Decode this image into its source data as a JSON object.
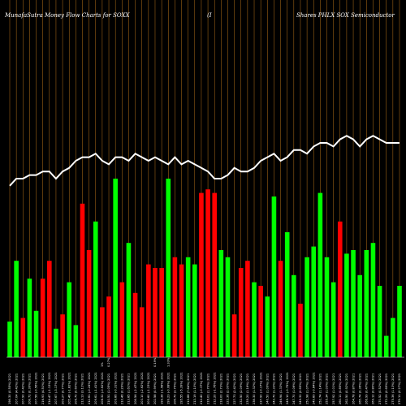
{
  "chart_data": {
    "type": "bar",
    "title_left": "MunafaSutra  Money Flow  Charts for SOXX",
    "title_mid": "(I",
    "title_right": "Shares PHLX  SOX  Semiconductor",
    "ylim": [
      0,
      100
    ],
    "colors": {
      "background": "#000000",
      "up": "#00ff00",
      "down": "#ff0000",
      "grid": "#b8731a",
      "line": "#ffffff",
      "baseline": "#ffffff"
    },
    "categories": [
      "198.30 (0.55%) 2021",
      "207.04 (4.42%) 2021",
      "207.90 (0.42%) 2021",
      "208.72 (0.39%) 2021",
      "207.56 (-0.56%) 2021",
      "216.93 (4.51%) 2021",
      "214.47 (-1.13%) 2021",
      "207.67 (-3.17%) 2021",
      "209.27 (0.77%) 2021",
      "205.46 (-1.82%) 2021",
      "206.70 (0.60%) 2021",
      "213.13 (3.11%) 2021",
      "212.61 (-0.24%) 2021",
      "209.61 (-1.41%) 2021",
      "208.32 (-0.62%) 2021",
      "210.51 (1.05%) 2021",
      "209.86 (-0.31%) 2021",
      "210.46 (0.29%) 2021",
      "213.85 (1.61%) 2021",
      "208.56 (-2.47%) 2021",
      "203.10 (-2.62%) 2021",
      "200.60 (-1.23%) 2021",
      "202.58 (0.99%) 2021",
      "199.38 (-1.58%) 2021",
      "199.23 (-0.08%) 2021",
      "206.70 (3.75%) 2021",
      "195.55 (-5.39%) 2021",
      "210.88 (7.84%) 2021",
      "213.19 (1.10%) 2021",
      "212.40 (-0.37%) 2021",
      "216.01 (1.70%) 2021",
      "212.20 (-1.76%) 2021",
      "218.00 (2.73%) 2021",
      "222.36 (2.00%) 2021",
      "227.73 (2.42%) 2021",
      "232.50 (2.09%) 2021",
      "235.20 (1.16%) 2021",
      "238.30 (1.32%) 2021",
      "237.90 (-0.17%) 2021",
      "240.50 (1.09%) 2021",
      "243.70 (1.33%) 2021",
      "246.94 (1.33%) 2021",
      "245.10 (-0.75%) 2021",
      "247.70 (1.06%) 2021",
      "249.32 (0.65%) 2021",
      "251.98 (1.07%) 2021",
      "249.89 (-0.84%) 2021",
      "252.74 (1.14%) 2021",
      "255.34 (1.03%) 2021",
      "257.92 (1.01%) 2021",
      "260.11 (0.85%) 2021",
      "262.50 (0.92%) 2021",
      "264.78 (0.87%) 2021",
      "265.74 (0.36%) 2021",
      "266.99 (0.47%) 2021",
      "269.12 (0.80%) 2021",
      "270.52 (0.52%) 2021",
      "272.29 (0.65%) 2021",
      "275.36 (1.13%) 2021",
      "276.11 (0.27%) 2021"
    ],
    "vol_labels": [
      "",
      "",
      "",
      "",
      "",
      "",
      "",
      "",
      "",
      "",
      "",
      "",
      "",
      "",
      "1%",
      "0.27%",
      "",
      "",
      "",
      "",
      "",
      "",
      "0.19%",
      "",
      "1.33%",
      "",
      "",
      "",
      "",
      "",
      "",
      "",
      "",
      "",
      "",
      "",
      "",
      "",
      "",
      "",
      "",
      "",
      "",
      "",
      "",
      "",
      "",
      "",
      "",
      "",
      "",
      "",
      "",
      "",
      "",
      "",
      "",
      "",
      "",
      ""
    ],
    "bar_colors": [
      "up",
      "up",
      "down",
      "up",
      "up",
      "down",
      "down",
      "up",
      "down",
      "up",
      "up",
      "down",
      "down",
      "up",
      "down",
      "down",
      "up",
      "down",
      "up",
      "down",
      "down",
      "down",
      "down",
      "down",
      "up",
      "down",
      "down",
      "up",
      "up",
      "down",
      "down",
      "down",
      "up",
      "up",
      "down",
      "down",
      "down",
      "up",
      "down",
      "up",
      "up",
      "down",
      "up",
      "up",
      "down",
      "up",
      "up",
      "up",
      "up",
      "up",
      "down",
      "up",
      "up",
      "up",
      "up",
      "up",
      "up",
      "up",
      "up",
      "up"
    ],
    "bar_values": [
      10,
      27,
      11,
      22,
      13,
      22,
      27,
      8,
      12,
      21,
      9,
      43,
      30,
      38,
      14,
      17,
      50,
      21,
      32,
      18,
      14,
      26,
      25,
      25,
      50,
      28,
      26,
      28,
      26,
      46,
      47,
      46,
      30,
      28,
      12,
      25,
      27,
      21,
      20,
      17,
      45,
      27,
      35,
      23,
      15,
      28,
      31,
      46,
      28,
      21,
      38,
      29,
      30,
      23,
      30,
      32,
      20,
      6,
      11,
      20
    ],
    "line_values": [
      48,
      50,
      50,
      51,
      51,
      52,
      52,
      50,
      52,
      53,
      55,
      56,
      56,
      57,
      55,
      54,
      56,
      56,
      55,
      57,
      56,
      55,
      56,
      55,
      54,
      56,
      54,
      55,
      54,
      53,
      52,
      50,
      50,
      51,
      53,
      52,
      52,
      53,
      55,
      56,
      57,
      55,
      56,
      58,
      58,
      57,
      59,
      60,
      60,
      59,
      61,
      62,
      61,
      59,
      61,
      62,
      61,
      60,
      60,
      60
    ]
  }
}
